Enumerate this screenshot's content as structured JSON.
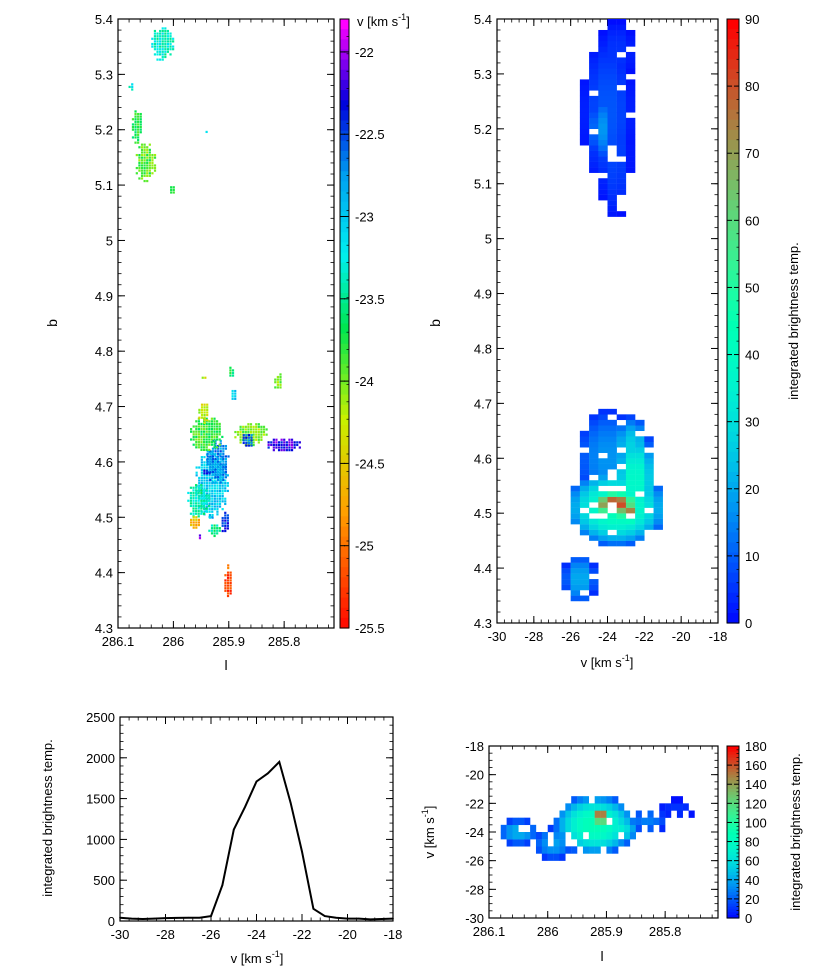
{
  "figure": "four-panel astronomical data figure (velocity field, b-v map, spectrum, v-l map)",
  "chart_data": [
    {
      "id": "panel_a",
      "type": "heatmap",
      "title": "",
      "xlabel": "l",
      "ylabel": "b",
      "xlim": [
        286.1,
        285.71
      ],
      "ylim": [
        4.3,
        5.4
      ],
      "x_ticks": [
        "286.1",
        "286",
        "285.9",
        "285.8"
      ],
      "y_ticks": [
        "4.3",
        "4.4",
        "4.5",
        "4.6",
        "4.7",
        "4.8",
        "4.9",
        "5",
        "5.1",
        "5.2",
        "5.3",
        "5.4"
      ],
      "colorbar": {
        "label_main": "v [km s",
        "label_sup": "-1",
        "label_end": "]",
        "range": [
          -25.5,
          -21.8
        ],
        "ticks": [
          "-22",
          "-22.5",
          "-23",
          "-23.5",
          "-24",
          "-24.5",
          "-25",
          "-25.5"
        ]
      },
      "blobs": [
        {
          "l": 286.02,
          "b": 5.355,
          "dl": 0.02,
          "db": 0.03,
          "v": -23.3
        },
        {
          "l": 286.075,
          "b": 5.278,
          "dl": 0.006,
          "db": 0.006,
          "v": -23.2
        },
        {
          "l": 286.065,
          "b": 5.205,
          "dl": 0.01,
          "db": 0.03,
          "v": -23.7
        },
        {
          "l": 286.05,
          "b": 5.14,
          "dl": 0.018,
          "db": 0.035,
          "v": -23.9
        },
        {
          "l": 286.0,
          "b": 5.09,
          "dl": 0.006,
          "db": 0.008,
          "v": -23.9
        },
        {
          "l": 285.94,
          "b": 5.195,
          "dl": 0.002,
          "db": 0.003,
          "v": -23.3
        },
        {
          "l": 285.93,
          "b": 4.56,
          "dl": 0.03,
          "db": 0.06,
          "v": -23.0
        },
        {
          "l": 285.92,
          "b": 4.6,
          "dl": 0.02,
          "db": 0.04,
          "v": -22.7
        },
        {
          "l": 285.955,
          "b": 4.53,
          "dl": 0.02,
          "db": 0.03,
          "v": -23.4
        },
        {
          "l": 285.94,
          "b": 4.65,
          "dl": 0.03,
          "db": 0.03,
          "v": -23.8
        },
        {
          "l": 285.945,
          "b": 4.69,
          "dl": 0.01,
          "db": 0.02,
          "v": -24.2
        },
        {
          "l": 285.86,
          "b": 4.65,
          "dl": 0.03,
          "db": 0.02,
          "v": -24.0
        },
        {
          "l": 285.8,
          "b": 4.63,
          "dl": 0.03,
          "db": 0.012,
          "v": -22.2
        },
        {
          "l": 285.865,
          "b": 4.64,
          "dl": 0.01,
          "db": 0.015,
          "v": -22.5
        },
        {
          "l": 285.89,
          "b": 4.72,
          "dl": 0.005,
          "db": 0.01,
          "v": -23.0
        },
        {
          "l": 285.81,
          "b": 4.745,
          "dl": 0.008,
          "db": 0.015,
          "v": -24.0
        },
        {
          "l": 285.895,
          "b": 4.762,
          "dl": 0.004,
          "db": 0.01,
          "v": -23.6
        },
        {
          "l": 285.945,
          "b": 4.75,
          "dl": 0.004,
          "db": 0.004,
          "v": -24.2
        },
        {
          "l": 285.96,
          "b": 4.49,
          "dl": 0.01,
          "db": 0.012,
          "v": -24.6
        },
        {
          "l": 285.905,
          "b": 4.49,
          "dl": 0.008,
          "db": 0.02,
          "v": -22.4
        },
        {
          "l": 285.925,
          "b": 4.475,
          "dl": 0.012,
          "db": 0.012,
          "v": -23.5
        },
        {
          "l": 285.93,
          "b": 4.5,
          "dl": 0.006,
          "db": 0.006,
          "v": -22.9
        },
        {
          "l": 285.95,
          "b": 4.465,
          "dl": 0.004,
          "db": 0.004,
          "v": -22.1
        },
        {
          "l": 285.94,
          "b": 4.58,
          "dl": 0.006,
          "db": 0.006,
          "v": -22.4
        },
        {
          "l": 285.9,
          "b": 4.38,
          "dl": 0.008,
          "db": 0.022,
          "v": -25.2
        },
        {
          "l": 285.9,
          "b": 4.41,
          "dl": 0.003,
          "db": 0.005,
          "v": -24.8
        }
      ]
    },
    {
      "id": "panel_b",
      "type": "heatmap",
      "title": "",
      "xlabel_main": "v [km s",
      "xlabel_sup": "-1",
      "xlabel_end": "]",
      "ylabel": "b",
      "xlim": [
        -30,
        -18
      ],
      "ylim": [
        4.3,
        5.4
      ],
      "x_ticks": [
        "-30",
        "-28",
        "-26",
        "-24",
        "-22",
        "-20",
        "-18"
      ],
      "y_ticks": [
        "4.3",
        "4.4",
        "4.5",
        "4.6",
        "4.7",
        "4.8",
        "4.9",
        "5",
        "5.1",
        "5.2",
        "5.3",
        "5.4"
      ],
      "colorbar": {
        "label": "integrated brightness temp.",
        "range": [
          0,
          90
        ],
        "ticks": [
          "0",
          "10",
          "20",
          "30",
          "40",
          "50",
          "60",
          "70",
          "80",
          "90"
        ]
      },
      "blobs": [
        {
          "v": -24.0,
          "b": 5.23,
          "dv": 1.2,
          "db": 0.12,
          "value": 10
        },
        {
          "v": -24.3,
          "b": 5.2,
          "dv": 0.6,
          "db": 0.05,
          "value": 18
        },
        {
          "v": -23.6,
          "b": 5.15,
          "dv": 0.8,
          "db": 0.1,
          "value": 8
        },
        {
          "v": -23.5,
          "b": 5.34,
          "dv": 0.9,
          "db": 0.05,
          "value": 6
        },
        {
          "v": -23.5,
          "b": 4.51,
          "dv": 2.4,
          "db": 0.06,
          "value": 45
        },
        {
          "v": -22.5,
          "b": 4.56,
          "dv": 1.0,
          "db": 0.08,
          "value": 40
        },
        {
          "v": -23.6,
          "b": 4.517,
          "dv": 1.2,
          "db": 0.022,
          "value": 86
        },
        {
          "v": -22.9,
          "b": 4.502,
          "dv": 0.5,
          "db": 0.02,
          "value": 80
        },
        {
          "v": -22.7,
          "b": 4.62,
          "dv": 0.9,
          "db": 0.05,
          "value": 28
        },
        {
          "v": -24.0,
          "b": 4.6,
          "dv": 1.5,
          "db": 0.08,
          "value": 18
        },
        {
          "v": -25.5,
          "b": 4.38,
          "dv": 0.8,
          "db": 0.04,
          "value": 22
        }
      ]
    },
    {
      "id": "panel_c",
      "type": "line",
      "title": "",
      "xlabel_main": "v [km s",
      "xlabel_sup": "-1",
      "xlabel_end": "]",
      "ylabel": "integrated brightness temp.",
      "xlim": [
        -30,
        -18
      ],
      "ylim": [
        0,
        2500
      ],
      "x_ticks": [
        "-30",
        "-28",
        "-26",
        "-24",
        "-22",
        "-20",
        "-18"
      ],
      "y_ticks": [
        "0",
        "500",
        "1000",
        "1500",
        "2000",
        "2500"
      ],
      "series": [
        {
          "name": "spectrum",
          "x": [
            -30,
            -29.5,
            -29,
            -28.5,
            -28,
            -27.5,
            -27,
            -26.5,
            -26,
            -25.5,
            -25,
            -24.5,
            -24,
            -23.5,
            -23,
            -22.5,
            -22,
            -21.5,
            -21,
            -20.5,
            -20,
            -19.5,
            -19,
            -18.5,
            -18
          ],
          "y": [
            40,
            30,
            25,
            30,
            35,
            38,
            40,
            40,
            60,
            440,
            1120,
            1400,
            1710,
            1810,
            1950,
            1450,
            850,
            150,
            60,
            40,
            30,
            30,
            20,
            25,
            30
          ]
        }
      ]
    },
    {
      "id": "panel_d",
      "type": "heatmap",
      "title": "",
      "xlabel": "l",
      "ylabel_main": "v [km s",
      "ylabel_sup": "-1",
      "ylabel_end": "]",
      "xlim": [
        286.1,
        285.71
      ],
      "ylim": [
        -30,
        -18
      ],
      "x_ticks": [
        "286.1",
        "286",
        "285.9",
        "285.8"
      ],
      "y_ticks": [
        "-30",
        "-28",
        "-26",
        "-24",
        "-22",
        "-20",
        "-18"
      ],
      "colorbar": {
        "label": "integrated brightness temp.",
        "range": [
          0,
          180
        ],
        "ticks": [
          "0",
          "20",
          "40",
          "60",
          "80",
          "100",
          "120",
          "140",
          "160",
          "180"
        ]
      },
      "blobs": [
        {
          "l": 285.92,
          "v": -23.5,
          "dl": 0.06,
          "dv": 1.8,
          "value": 90
        },
        {
          "l": 285.91,
          "v": -22.9,
          "dl": 0.012,
          "dv": 0.6,
          "value": 175
        },
        {
          "l": 285.88,
          "v": -23.8,
          "dl": 0.03,
          "dv": 1.0,
          "value": 70
        },
        {
          "l": 286.05,
          "v": -24.0,
          "dl": 0.03,
          "dv": 0.8,
          "value": 45
        },
        {
          "l": 285.99,
          "v": -24.8,
          "dl": 0.03,
          "dv": 1.0,
          "value": 40
        },
        {
          "l": 285.83,
          "v": -23.2,
          "dl": 0.03,
          "dv": 0.8,
          "value": 30
        },
        {
          "l": 285.78,
          "v": -22.4,
          "dl": 0.03,
          "dv": 0.6,
          "value": 12
        }
      ]
    }
  ]
}
